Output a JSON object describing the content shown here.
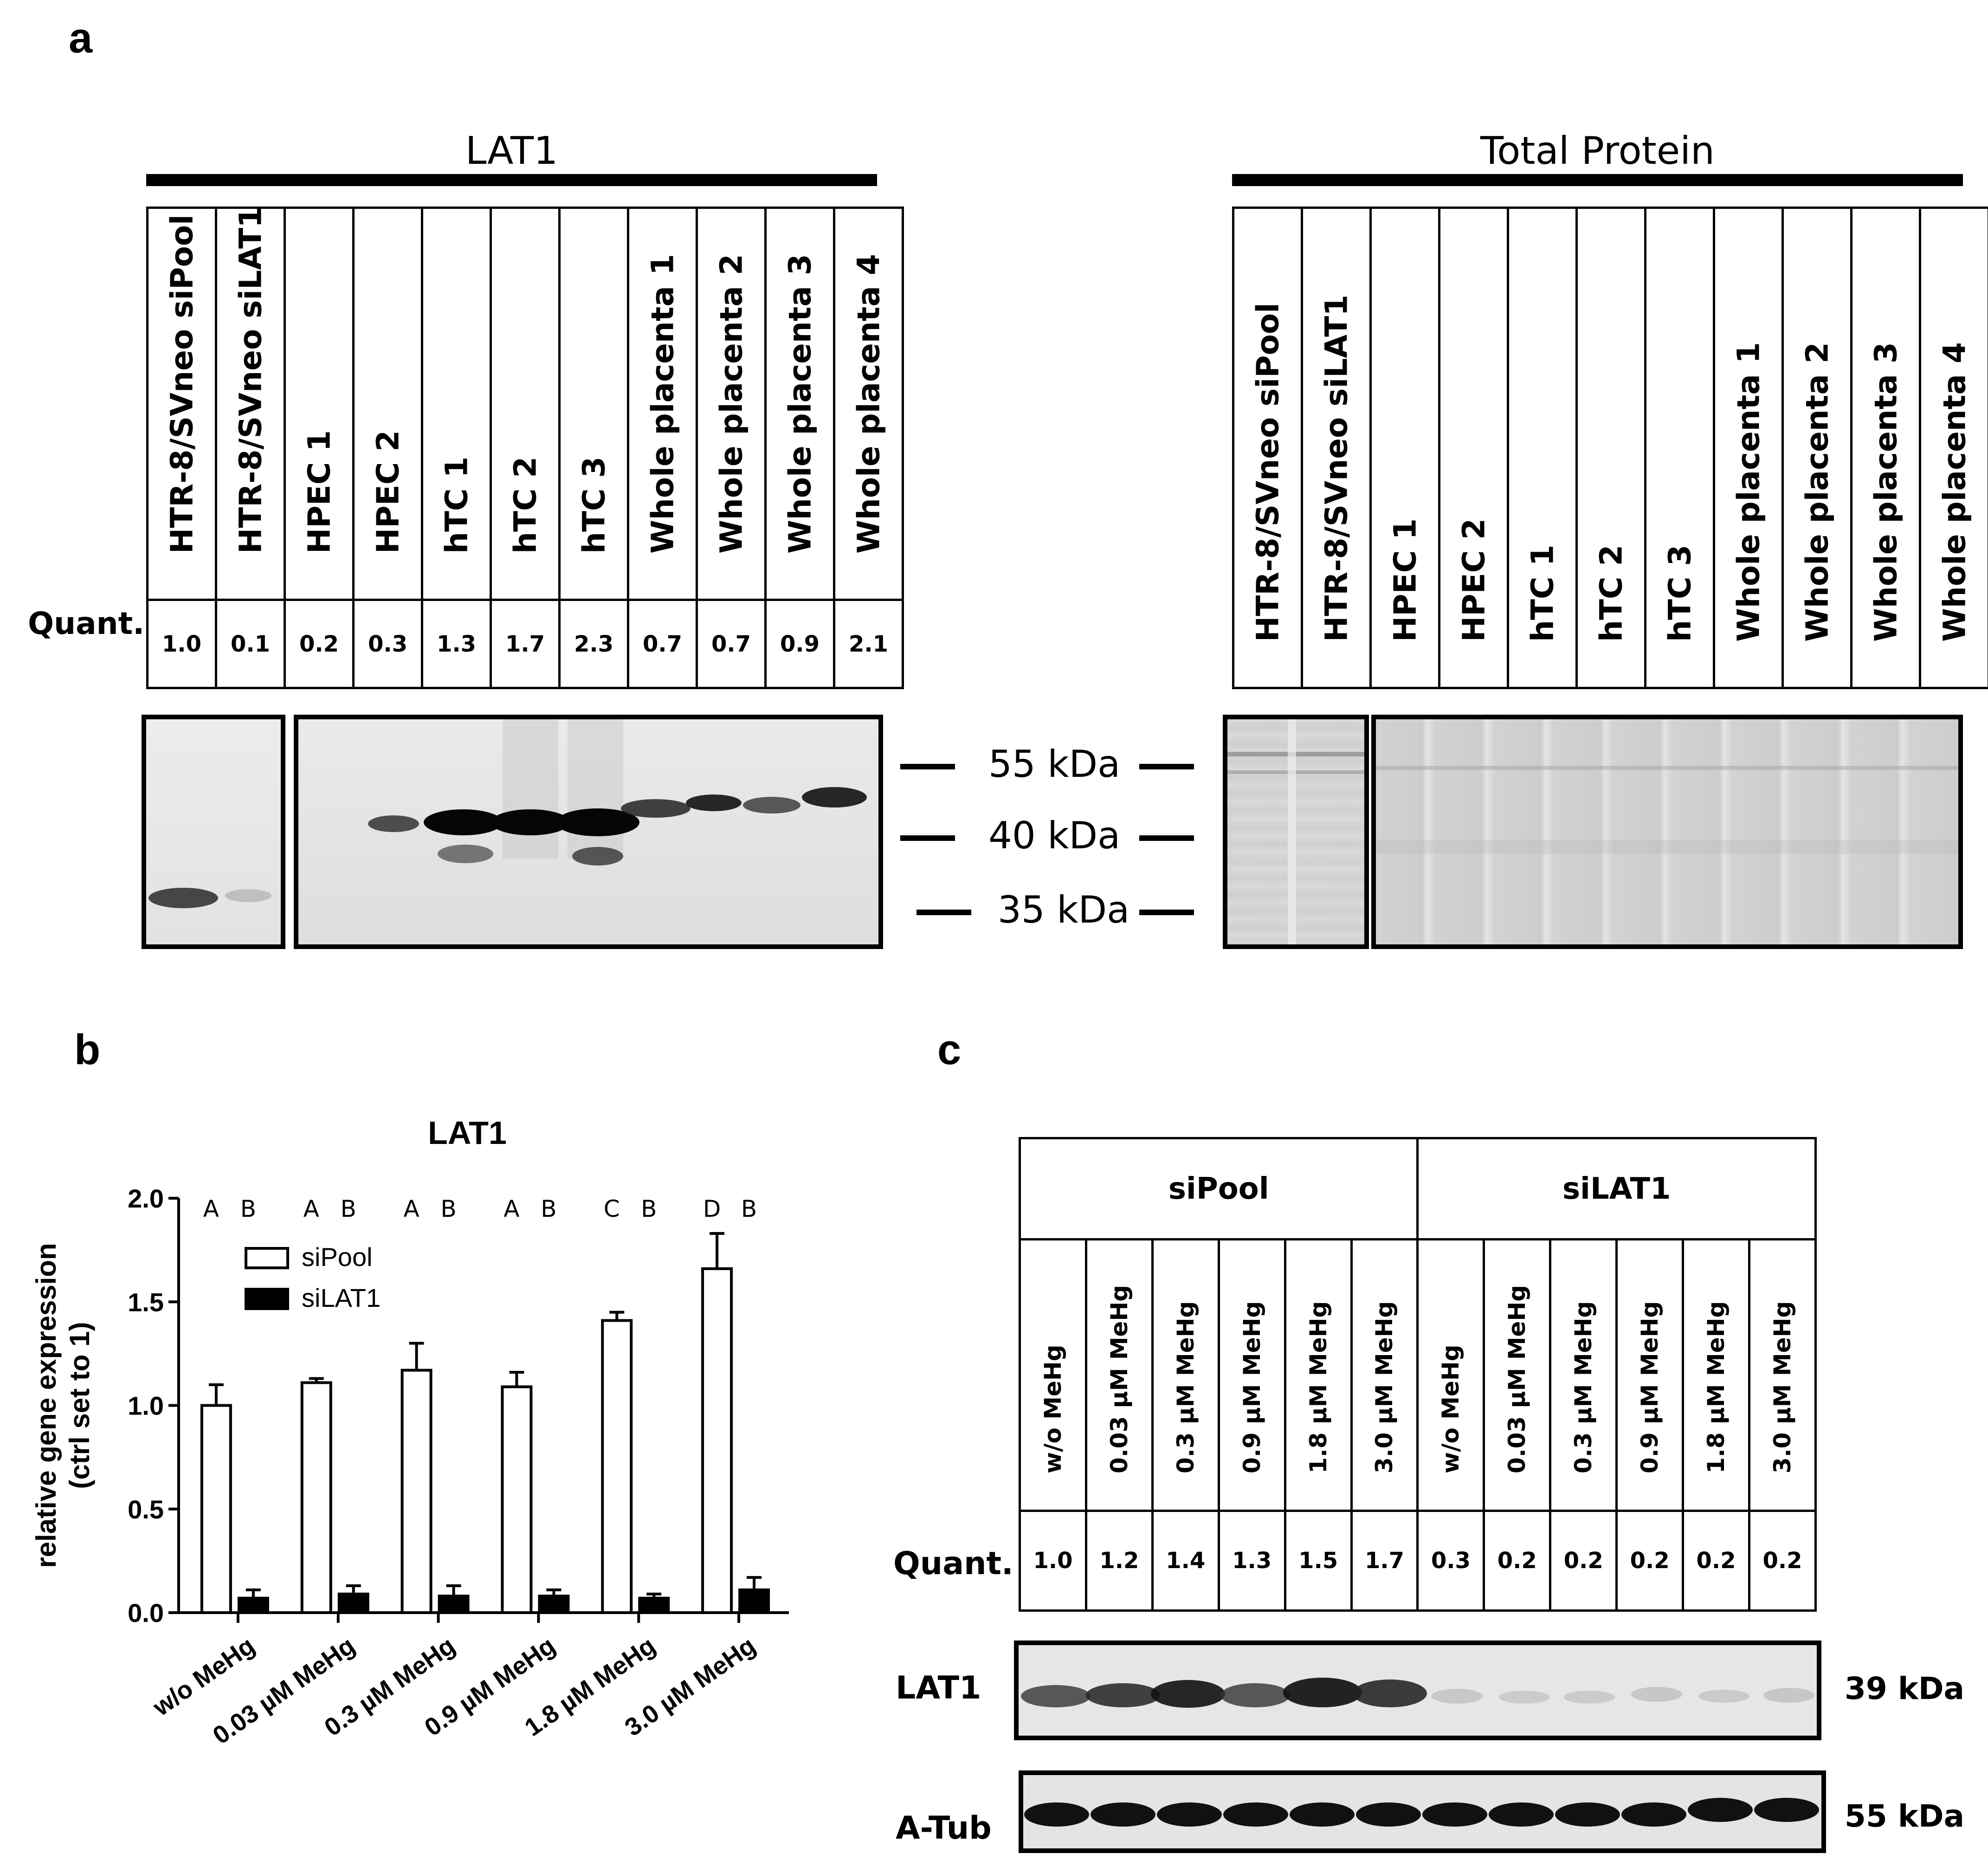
{
  "panels": {
    "a": {
      "letter": "a",
      "lat1_header": "LAT1",
      "total_protein_header": "Total Protein",
      "quant_label": "Quant.",
      "lat1_lanes": [
        {
          "label": "HTR-8/SVneo siPool",
          "quant": "1.0"
        },
        {
          "label": "HTR-8/SVneo  siLAT1",
          "quant": "0.1"
        },
        {
          "label": "HPEC 1",
          "quant": "0.2"
        },
        {
          "label": "HPEC 2",
          "quant": "0.3"
        },
        {
          "label": "hTC 1",
          "quant": "1.3"
        },
        {
          "label": "hTC 2",
          "quant": "1.7"
        },
        {
          "label": "hTC 3",
          "quant": "2.3"
        },
        {
          "label": "Whole placenta 1",
          "quant": "0.7"
        },
        {
          "label": "Whole placenta 2",
          "quant": "0.7"
        },
        {
          "label": "Whole placenta 3",
          "quant": "0.9"
        },
        {
          "label": "Whole placenta 4",
          "quant": "2.1"
        }
      ],
      "total_lanes": [
        "HTR-8/SVneo siPool",
        "HTR-8/SVneo  siLAT1",
        "HPEC 1",
        "HPEC 2",
        "hTC 1",
        "hTC 2",
        "hTC 3",
        "Whole placenta 1",
        "Whole placenta 2",
        "Whole placenta 3",
        "Whole placenta 4"
      ],
      "markers": [
        "55 kDa",
        "40 kDa",
        "35 kDa"
      ]
    },
    "b": {
      "letter": "b"
    },
    "c": {
      "letter": "c",
      "group_labels": [
        "siPool",
        "siLAT1"
      ],
      "lanes": [
        "w/o MeHg",
        "0.03 µM MeHg",
        "0.3 µM MeHg",
        "0.9 µM MeHg",
        "1.8 µM MeHg",
        "3.0 µM MeHg",
        "w/o MeHg",
        "0.03 µM MeHg",
        "0.3 µM MeHg",
        "0.9 µM MeHg",
        "1.8 µM MeHg",
        "3.0 µM MeHg"
      ],
      "quant_label": "Quant.",
      "quants": [
        "1.0",
        "1.2",
        "1.4",
        "1.3",
        "1.5",
        "1.7",
        "0.3",
        "0.2",
        "0.2",
        "0.2",
        "0.2",
        "0.2"
      ],
      "blot_labels": [
        "LAT1",
        "A-Tub"
      ],
      "kda_labels": [
        "39 kDa",
        "55 kDa"
      ]
    }
  },
  "chart_data": {
    "type": "bar",
    "title": "LAT1",
    "xlabel": "",
    "ylabel": "relative gene expression (ctrl set to 1)",
    "ylabel_lines": [
      "relative gene expression",
      "(ctrl set to 1)"
    ],
    "ylim": [
      0,
      2.0
    ],
    "yticks": [
      "0.0",
      "0.5",
      "1.0",
      "1.5",
      "2.0"
    ],
    "categories": [
      "w/o MeHg",
      "0.03 µM MeHg",
      "0.3 µM MeHg",
      "0.9 µM MeHg",
      "1.8 µM MeHg",
      "3.0 µM MeHg"
    ],
    "series": [
      {
        "name": "siPool",
        "values": [
          1.0,
          1.11,
          1.17,
          1.09,
          1.41,
          1.66
        ],
        "errors": [
          0.1,
          0.02,
          0.13,
          0.07,
          0.04,
          0.17
        ],
        "fill": "#ffffff"
      },
      {
        "name": "siLAT1",
        "values": [
          0.07,
          0.09,
          0.08,
          0.08,
          0.07,
          0.11
        ],
        "errors": [
          0.04,
          0.04,
          0.05,
          0.03,
          0.02,
          0.06
        ],
        "fill": "#000000"
      }
    ],
    "significance": [
      [
        "A",
        "B"
      ],
      [
        "A",
        "B"
      ],
      [
        "A",
        "B"
      ],
      [
        "A",
        "B"
      ],
      [
        "C",
        "B"
      ],
      [
        "D",
        "B"
      ]
    ],
    "legend_position": "top-left",
    "grid": false
  }
}
